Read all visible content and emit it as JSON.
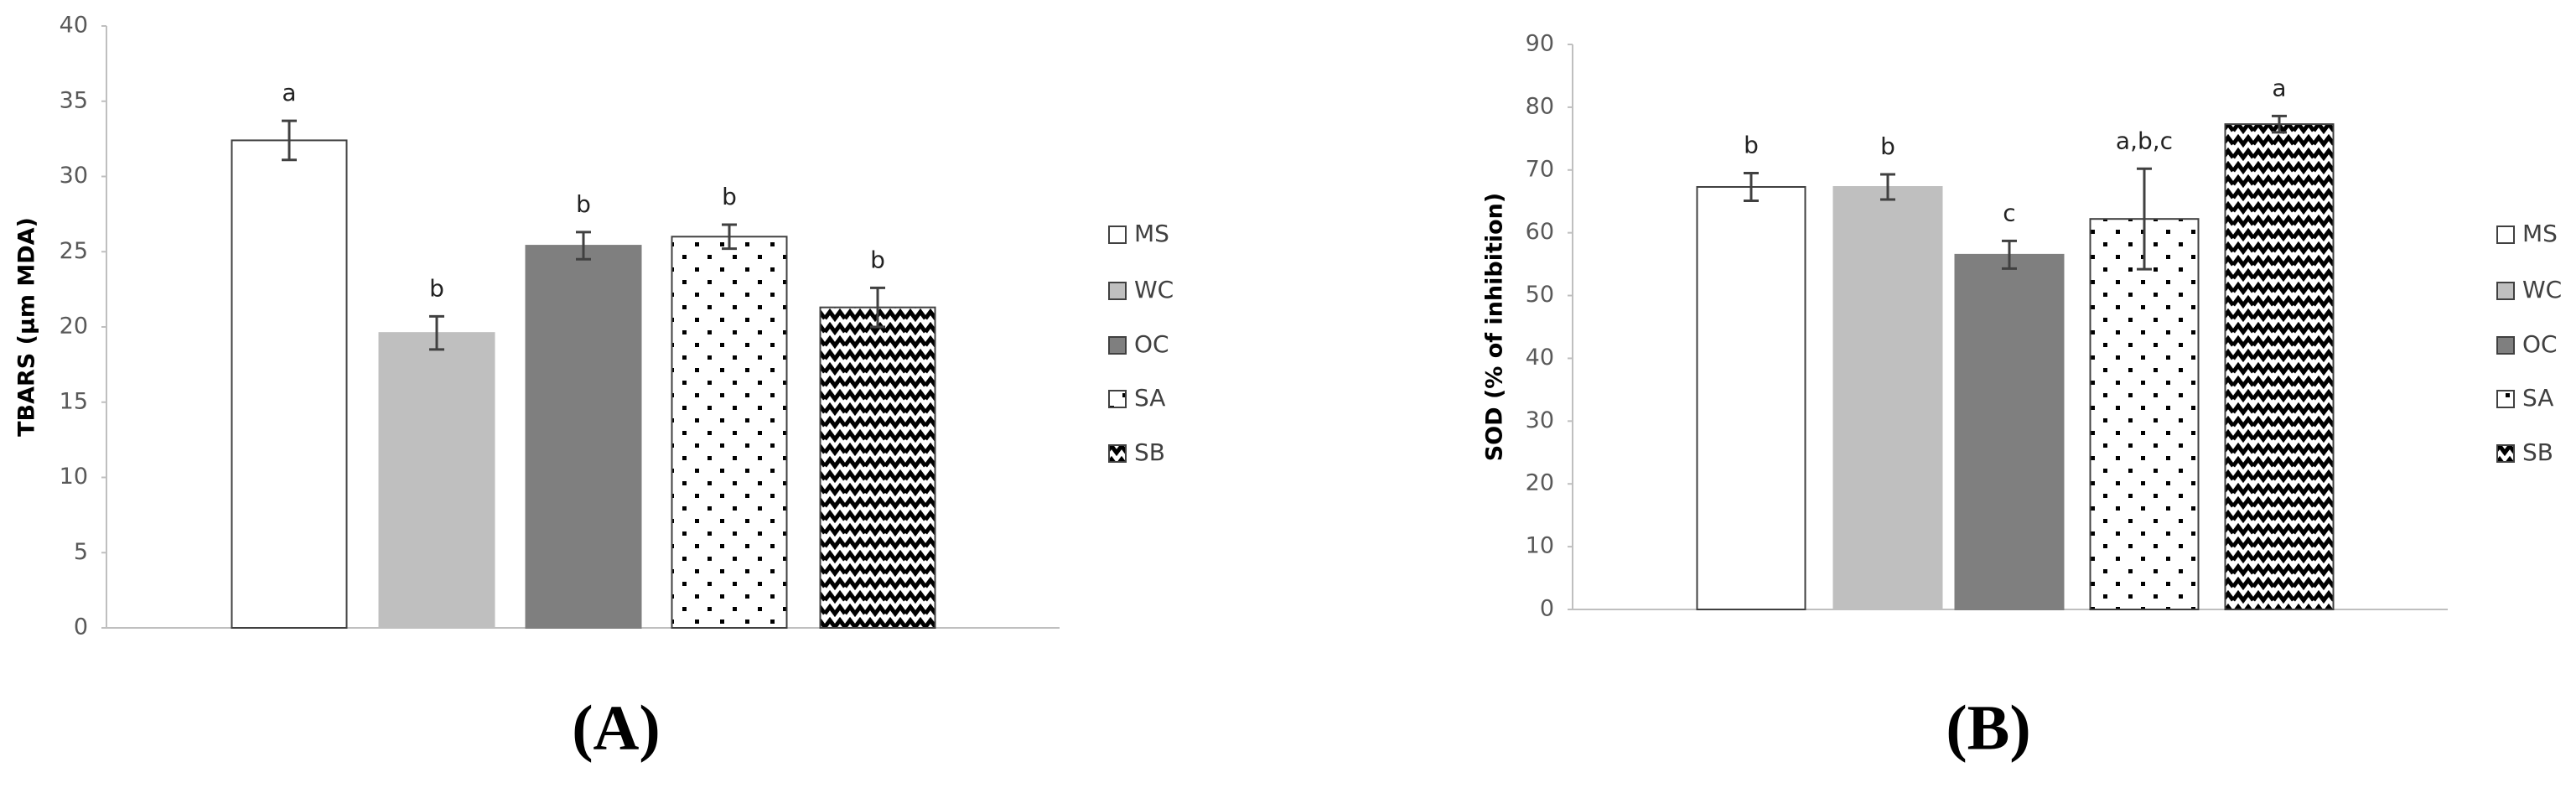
{
  "chart_data": [
    {
      "type": "bar",
      "panel_label": "(A)",
      "y_label": "TBARS (µm MDA)",
      "categories": [
        "MS",
        "WC",
        "OC",
        "SA",
        "SB"
      ],
      "values": [
        32.4,
        19.6,
        25.4,
        26.0,
        21.3
      ],
      "errors": [
        1.3,
        1.1,
        0.9,
        0.8,
        1.3
      ],
      "annotations": [
        "a",
        "b",
        "b",
        "b",
        "b"
      ],
      "colors": [
        "#ffffff",
        "#bfbfbf",
        "#7f7f7f",
        "#ffffff",
        "#ffffff"
      ],
      "patterns": [
        null,
        null,
        null,
        "dots",
        "zigzag"
      ],
      "ylim": [
        0,
        40
      ],
      "yticks": [
        0,
        5,
        10,
        15,
        20,
        25,
        30,
        35,
        40
      ],
      "grid": false,
      "legend": "right"
    },
    {
      "type": "bar",
      "panel_label": "(B)",
      "y_label": "SOD (% of inhibition)",
      "categories": [
        "MS",
        "WC",
        "OC",
        "SA",
        "SB"
      ],
      "values": [
        67.3,
        67.3,
        56.5,
        62.2,
        77.3
      ],
      "errors": [
        2.2,
        2.0,
        2.2,
        8.0,
        1.3
      ],
      "annotations": [
        "b",
        "b",
        "c",
        "a,b,c",
        "a"
      ],
      "colors": [
        "#ffffff",
        "#bfbfbf",
        "#7f7f7f",
        "#ffffff",
        "#ffffff"
      ],
      "patterns": [
        null,
        null,
        null,
        "dots",
        "zigzag"
      ],
      "ylim": [
        0,
        90
      ],
      "yticks": [
        0,
        10,
        20,
        30,
        40,
        50,
        60,
        70,
        80,
        90
      ],
      "grid": false,
      "legend": "right"
    }
  ]
}
